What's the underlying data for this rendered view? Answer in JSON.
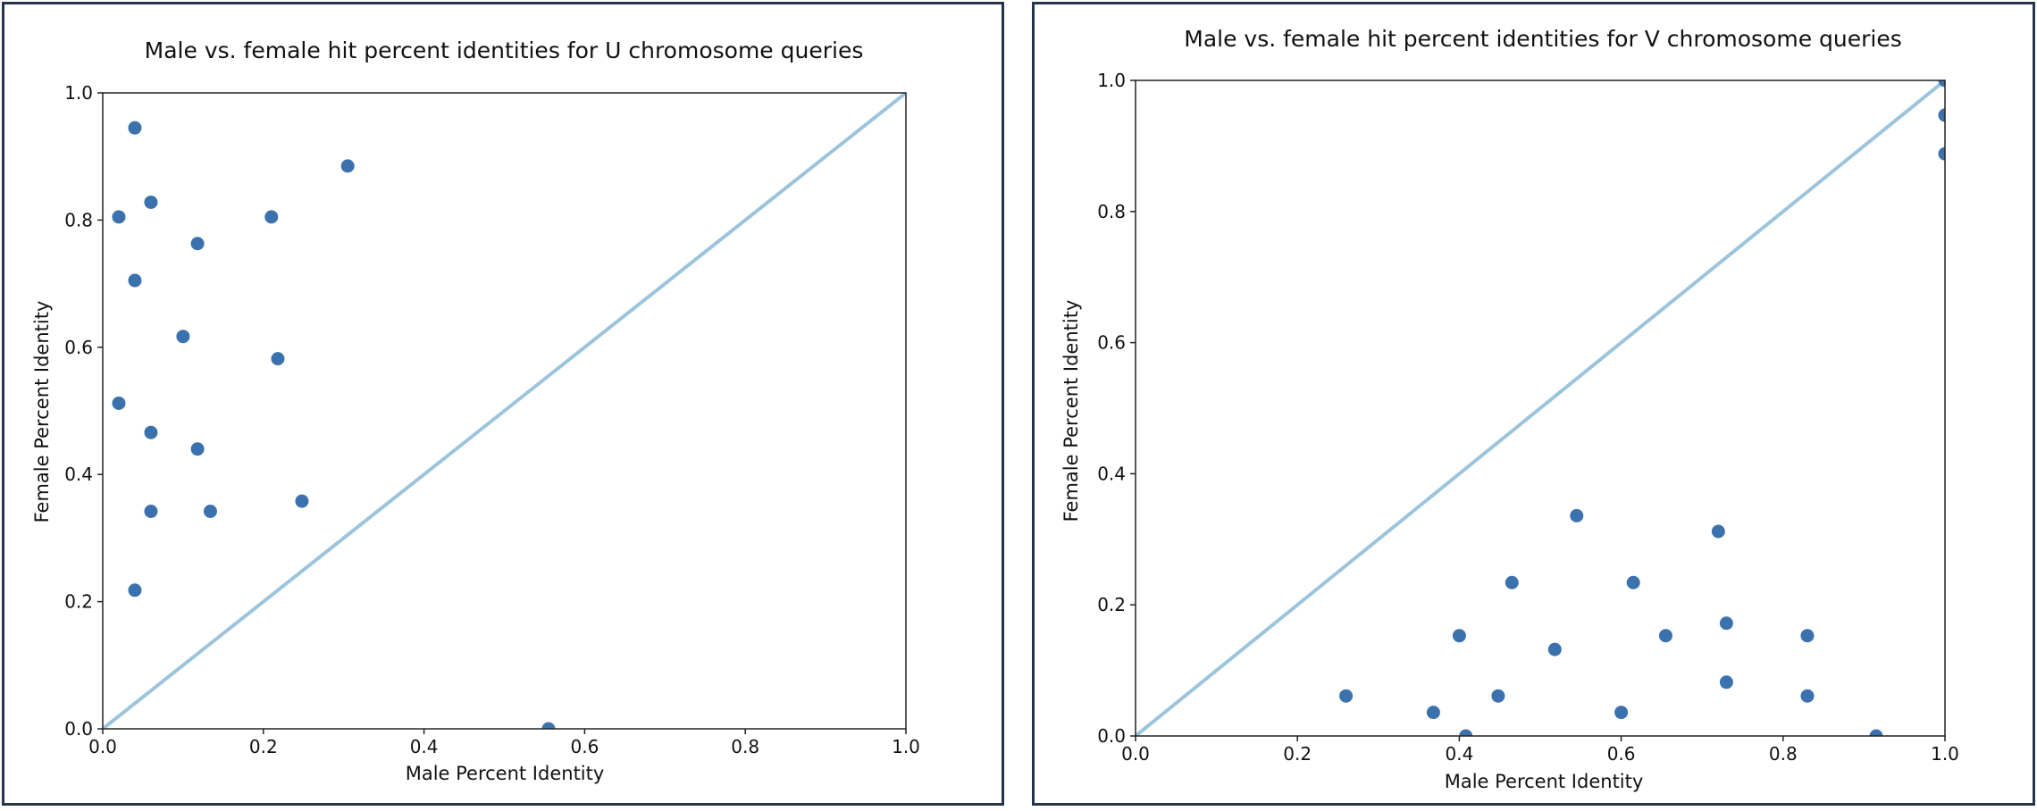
{
  "colors": {
    "panel_border": "#24344a",
    "point": "#3b72ad",
    "diagonal": "#9cc4dc",
    "axes": "#222222"
  },
  "chart_data": [
    {
      "type": "scatter",
      "title": "Male vs. female hit percent identities for U chromosome queries",
      "xlabel": "Male Percent Identity",
      "ylabel": "Female Percent Identity",
      "xlim": [
        0,
        1
      ],
      "ylim": [
        0,
        1
      ],
      "xticks": [
        "0.0",
        "0.2",
        "0.4",
        "0.6",
        "0.8",
        "1.0"
      ],
      "yticks": [
        "0.0",
        "0.2",
        "0.4",
        "0.6",
        "0.8",
        "1.0"
      ],
      "grid": false,
      "reference_line": "y = x",
      "points": [
        {
          "x": 0.04,
          "y": 0.945
        },
        {
          "x": 0.305,
          "y": 0.885
        },
        {
          "x": 0.06,
          "y": 0.828
        },
        {
          "x": 0.02,
          "y": 0.805
        },
        {
          "x": 0.21,
          "y": 0.805
        },
        {
          "x": 0.118,
          "y": 0.763
        },
        {
          "x": 0.04,
          "y": 0.705
        },
        {
          "x": 0.1,
          "y": 0.617
        },
        {
          "x": 0.218,
          "y": 0.582
        },
        {
          "x": 0.02,
          "y": 0.512
        },
        {
          "x": 0.06,
          "y": 0.466
        },
        {
          "x": 0.118,
          "y": 0.44
        },
        {
          "x": 0.248,
          "y": 0.358
        },
        {
          "x": 0.06,
          "y": 0.342
        },
        {
          "x": 0.134,
          "y": 0.342
        },
        {
          "x": 0.04,
          "y": 0.218
        },
        {
          "x": 0.555,
          "y": 0.0
        }
      ]
    },
    {
      "type": "scatter",
      "title": "Male vs. female hit percent identities for V chromosome queries",
      "xlabel": "Male Percent Identity",
      "ylabel": "Female Percent Identity",
      "xlim": [
        0,
        1
      ],
      "ylim": [
        0,
        1
      ],
      "xticks": [
        "0.0",
        "0.2",
        "0.4",
        "0.6",
        "0.8",
        "1.0"
      ],
      "yticks": [
        "0.0",
        "0.2",
        "0.4",
        "0.6",
        "0.8",
        "1.0"
      ],
      "grid": false,
      "reference_line": "y = x",
      "points": [
        {
          "x": 0.545,
          "y": 0.336
        },
        {
          "x": 0.72,
          "y": 0.312
        },
        {
          "x": 0.465,
          "y": 0.234
        },
        {
          "x": 0.615,
          "y": 0.234
        },
        {
          "x": 0.73,
          "y": 0.172
        },
        {
          "x": 0.4,
          "y": 0.153
        },
        {
          "x": 0.655,
          "y": 0.153
        },
        {
          "x": 0.83,
          "y": 0.153
        },
        {
          "x": 0.518,
          "y": 0.132
        },
        {
          "x": 0.73,
          "y": 0.082
        },
        {
          "x": 0.26,
          "y": 0.061
        },
        {
          "x": 0.448,
          "y": 0.061
        },
        {
          "x": 0.83,
          "y": 0.061
        },
        {
          "x": 0.368,
          "y": 0.036
        },
        {
          "x": 0.6,
          "y": 0.036
        },
        {
          "x": 0.408,
          "y": 0.0
        },
        {
          "x": 0.915,
          "y": 0.0
        },
        {
          "x": 1.0,
          "y": 1.0
        },
        {
          "x": 1.0,
          "y": 0.947
        },
        {
          "x": 1.0,
          "y": 0.888
        }
      ]
    }
  ]
}
